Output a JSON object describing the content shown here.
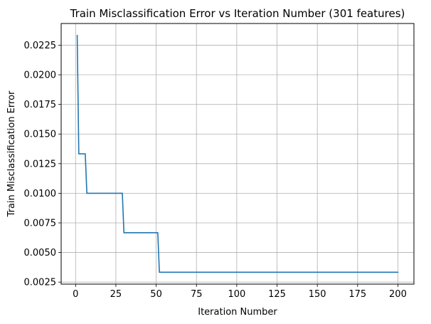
{
  "chart_data": {
    "type": "line",
    "title": "Train Misclassification Error vs Iteration Number (301 features)",
    "xlabel": "Iteration Number",
    "ylabel": "Train Misclassification Error",
    "xlim": [
      -8.95,
      209.95
    ],
    "ylim": [
      0.00233,
      0.02433
    ],
    "xticks": [
      0,
      25,
      50,
      75,
      100,
      125,
      150,
      175,
      200
    ],
    "xtick_labels": [
      "0",
      "25",
      "50",
      "75",
      "100",
      "125",
      "150",
      "175",
      "200"
    ],
    "yticks": [
      0.0025,
      0.005,
      0.0075,
      0.01,
      0.0125,
      0.015,
      0.0175,
      0.02,
      0.0225
    ],
    "ytick_labels": [
      "0.0025",
      "0.0050",
      "0.0075",
      "0.0100",
      "0.0125",
      "0.0150",
      "0.0175",
      "0.0200",
      "0.0225"
    ],
    "grid": true,
    "series": [
      {
        "color": "#1f77b4",
        "x": [
          1,
          2,
          3,
          4,
          5,
          6,
          7,
          28,
          29,
          30,
          51,
          52,
          53,
          200
        ],
        "y": [
          0.02333,
          0.01333,
          0.01333,
          0.01333,
          0.01333,
          0.01333,
          0.01,
          0.01,
          0.01,
          0.00667,
          0.00667,
          0.00333,
          0.00333,
          0.00333
        ]
      }
    ]
  }
}
